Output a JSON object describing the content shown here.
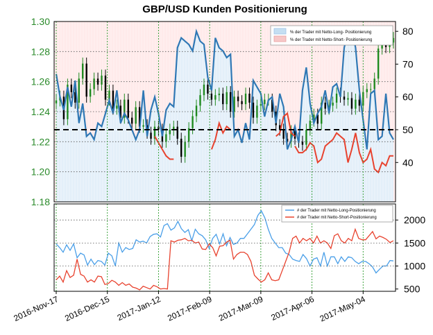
{
  "chart_data": [
    {
      "type": "line",
      "title": "GBP/USD Kunden Positionierung",
      "y_left": {
        "ticks": [
          "1.18",
          "1.20",
          "1.22",
          "1.24",
          "1.26",
          "1.28",
          "1.30"
        ],
        "range": [
          1.18,
          1.3
        ],
        "color": "#2a8a2a"
      },
      "y_right": {
        "ticks": [
          "40",
          "50",
          "60",
          "70",
          "80"
        ],
        "range": [
          28,
          83
        ]
      },
      "x_ticks": [
        "2016-Nov-17",
        "2016-Dec-15",
        "2017-Jan-12",
        "2017-Feb-09",
        "2017-Mar-09",
        "2017-Apr-06",
        "2017-May-04"
      ],
      "reference_line": 50,
      "legend": [
        {
          "label": "% der Trader mit Netto-Long- Positionierung",
          "color": "#c5dff2"
        },
        {
          "label": "% der Trader mit Netto-Short- Positionierung",
          "color": "#f7c8c8"
        }
      ],
      "colors": {
        "long": "#2f78b5",
        "short": "#e8422e",
        "candle_up": "#1f8a1f",
        "candle_down": "#000000"
      },
      "price_close": [
        1.2475,
        1.25,
        1.235,
        1.258,
        1.253,
        1.246,
        1.262,
        1.272,
        1.25,
        1.255,
        1.262,
        1.258,
        1.264,
        1.248,
        1.254,
        1.242,
        1.244,
        1.236,
        1.248,
        1.236,
        1.232,
        1.243,
        1.23,
        1.231,
        1.226,
        1.222,
        1.23,
        1.228,
        1.22,
        1.225,
        1.228,
        1.23,
        1.222,
        1.21,
        1.22,
        1.229,
        1.237,
        1.244,
        1.251,
        1.258,
        1.252,
        1.248,
        1.251,
        1.252,
        1.245,
        1.253,
        1.24,
        1.25,
        1.247,
        1.245,
        1.252,
        1.246,
        1.236,
        1.244,
        1.245,
        1.248,
        1.248,
        1.24,
        1.231,
        1.228,
        1.222,
        1.22,
        1.227,
        1.222,
        1.22,
        1.218,
        1.228,
        1.234,
        1.238,
        1.232,
        1.246,
        1.242,
        1.244,
        1.246,
        1.252,
        1.25,
        1.248,
        1.249,
        1.242,
        1.248,
        1.244,
        1.253,
        1.255,
        1.255,
        1.262,
        1.282,
        1.288,
        1.283,
        1.286,
        1.289
      ],
      "net_long_pct": [
        67,
        60,
        56,
        63,
        57,
        65,
        52,
        58,
        48,
        49,
        47,
        52,
        51,
        55,
        59,
        55,
        62,
        52,
        55,
        53,
        50,
        47,
        50,
        62,
        48,
        56,
        60,
        55,
        48,
        56,
        58,
        57,
        75,
        78,
        77,
        76,
        74,
        80,
        77,
        76,
        66,
        62,
        78,
        75,
        74,
        72,
        73,
        48,
        50,
        46,
        52,
        47,
        65,
        63,
        61,
        54,
        59,
        60,
        52,
        61,
        57,
        44,
        47,
        51,
        46,
        62,
        69,
        58,
        52,
        55,
        57,
        62,
        55,
        63,
        64,
        60,
        75,
        80,
        81,
        75,
        62,
        53,
        44,
        61,
        62,
        47,
        48,
        61,
        49,
        47
      ],
      "net_short_pct_segments": [
        {
          "x": [
            26,
            27,
            28,
            29,
            30,
            31
          ],
          "y": [
            48,
            46,
            44,
            42,
            41,
            41
          ]
        },
        {
          "x": [
            41,
            42,
            43,
            44,
            45,
            46
          ],
          "y": [
            44,
            47,
            52,
            49,
            51,
            50
          ]
        },
        {
          "x": [
            58,
            59,
            60,
            61,
            62,
            63
          ],
          "y": [
            48,
            49,
            54,
            55,
            49,
            48
          ]
        },
        {
          "x": [
            63,
            64,
            65,
            66,
            67,
            68,
            69,
            70,
            71,
            72,
            73,
            74,
            75,
            76,
            77,
            78,
            79,
            80,
            81,
            82,
            83,
            84,
            85,
            86,
            87,
            88,
            89
          ],
          "y": [
            45,
            43,
            43,
            44,
            46,
            45,
            40,
            41,
            45,
            46,
            47,
            49,
            48,
            47,
            40,
            44,
            49,
            43,
            40,
            41,
            44,
            38,
            37,
            40,
            39,
            42,
            42
          ]
        }
      ],
      "annotations": [
        "1.30",
        "1.28",
        "1.26",
        "1.24",
        "1.22",
        "1.20",
        "1.18"
      ]
    },
    {
      "type": "line",
      "y_right": {
        "ticks": [
          "500",
          "1000",
          "1500",
          "2000"
        ],
        "range": [
          450,
          2350
        ]
      },
      "legend": [
        {
          "label": "# der Trader mit Netto-Long-Positionierung",
          "color": "#4a9fe8"
        },
        {
          "label": "# der Trader mit Netto-Short-Positionierung",
          "color": "#e8422e"
        }
      ],
      "series": [
        {
          "values": [
            1480,
            1400,
            1300,
            1460,
            1340,
            1480,
            1180,
            1280,
            1240,
            1020,
            1150,
            1030,
            1120,
            1100,
            1020,
            1280,
            1220,
            1000,
            1500,
            1300,
            1400,
            1360,
            1380,
            1570,
            1520,
            1540,
            1500,
            1640,
            1690,
            1700,
            1630,
            1880,
            1920,
            1780,
            1830,
            1970,
            1810,
            1730,
            1790,
            1550,
            1800,
            1700,
            1660,
            1570,
            1380,
            1600,
            1690,
            1480,
            1700,
            1440,
            1620,
            1470,
            1500,
            1600,
            1600,
            1700,
            1800,
            1900,
            2100,
            2200,
            2050,
            1800,
            1600,
            1500,
            1400,
            1400,
            1280,
            1250,
            1150,
            1120,
            1100,
            1250,
            1160,
            1000,
            1150,
            1180,
            1000,
            1300,
            1000,
            1200,
            1200,
            1050,
            1200,
            1100,
            1200,
            1180,
            1100,
            1050,
            1100,
            1100,
            1050,
            980,
            850,
            930,
            1000,
            1000,
            1120,
            1110
          ]
        },
        {
          "values": [
            700,
            780,
            650,
            900,
            750,
            800,
            1150,
            820,
            780,
            650,
            700,
            650,
            780,
            770,
            600,
            620,
            690,
            650,
            580,
            640,
            580,
            610,
            540,
            520,
            480,
            560,
            530,
            500,
            580,
            550,
            500,
            510,
            500,
            1550,
            1520,
            1560,
            1570,
            1600,
            1550,
            1560,
            1500,
            1520,
            1370,
            1360,
            1480,
            1400,
            1220,
            1430,
            1440,
            1520,
            1560,
            1150,
            1250,
            1300,
            1300,
            1250,
            1100,
            800,
            720,
            650,
            700,
            850,
            700,
            680,
            700,
            900,
            1100,
            1300,
            1600,
            1650,
            1500,
            1600,
            1550,
            1600,
            1500,
            1650,
            1500,
            1550,
            1500,
            1380,
            1660,
            1700,
            1550,
            1500,
            1600,
            1550,
            1800,
            1600,
            1570,
            1570,
            1660,
            1750,
            1590,
            1650,
            1620,
            1580,
            1510,
            1550
          ]
        }
      ]
    }
  ]
}
